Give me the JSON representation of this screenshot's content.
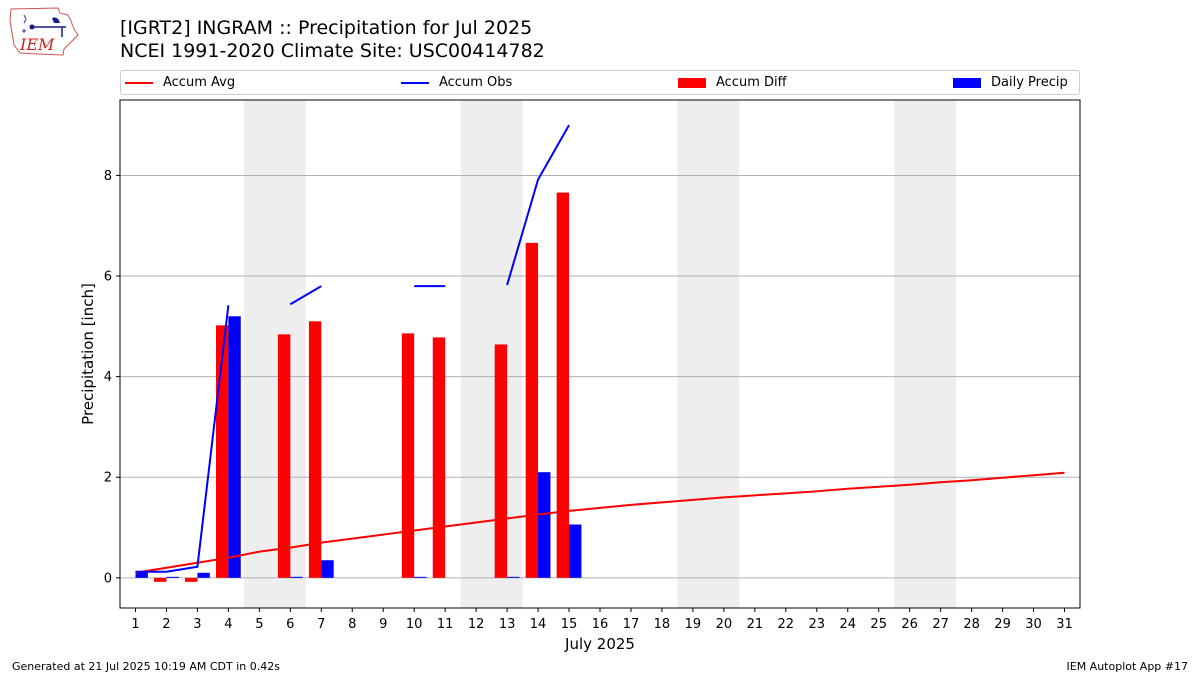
{
  "header": {
    "title_line1": "[IGRT2] INGRAM :: Precipitation for Jul 2025",
    "title_line2": "NCEI 1991-2020 Climate Site: USC00414782",
    "logo_text": "IEM"
  },
  "footer": {
    "generated": "Generated at 21 Jul 2025 10:19 AM CDT in 0.42s",
    "app": "IEM Autoplot App #17"
  },
  "colors": {
    "accum_avg": "#ff0000",
    "accum_obs": "#0000ff",
    "accum_diff": "#ff0000",
    "daily_precip": "#0000ff",
    "weekend_shade": "#eeeeee",
    "grid": "#b0b0b0"
  },
  "chart_data": {
    "type": "bar",
    "xlabel": "July 2025",
    "ylabel": "Precipitation [inch]",
    "xlim": [
      0.5,
      31.5
    ],
    "ylim": [
      -0.6,
      9.5
    ],
    "yticks": [
      0,
      2,
      4,
      6,
      8
    ],
    "grid": "horizontal",
    "legend_position": "top",
    "days": [
      1,
      2,
      3,
      4,
      5,
      6,
      7,
      8,
      9,
      10,
      11,
      12,
      13,
      14,
      15,
      16,
      17,
      18,
      19,
      20,
      21,
      22,
      23,
      24,
      25,
      26,
      27,
      28,
      29,
      30,
      31
    ],
    "weekend_days": [
      5,
      6,
      12,
      13,
      19,
      20,
      26,
      27
    ],
    "legend": [
      "Accum Avg",
      "Accum Obs",
      "Accum Diff",
      "Daily Precip"
    ],
    "series": [
      {
        "name": "Accum Avg",
        "kind": "line",
        "values": [
          0.1,
          0.2,
          0.3,
          0.4,
          0.52,
          0.6,
          0.7,
          0.78,
          0.86,
          0.94,
          1.02,
          1.1,
          1.18,
          1.26,
          1.33,
          1.39,
          1.45,
          1.5,
          1.55,
          1.6,
          1.64,
          1.68,
          1.72,
          1.77,
          1.81,
          1.85,
          1.9,
          1.94,
          1.99,
          2.04,
          2.09
        ]
      },
      {
        "name": "Accum Obs",
        "kind": "line",
        "values": [
          0.12,
          0.12,
          0.22,
          5.42,
          null,
          5.44,
          5.8,
          null,
          null,
          5.8,
          5.8,
          null,
          5.82,
          7.92,
          9.0,
          null,
          null,
          null,
          null,
          null,
          null,
          null,
          null,
          null,
          null,
          null,
          null,
          null,
          null,
          null,
          null
        ]
      },
      {
        "name": "Accum Diff",
        "kind": "bar",
        "values": [
          0.0,
          -0.08,
          -0.08,
          5.02,
          null,
          4.84,
          5.1,
          null,
          null,
          4.86,
          4.78,
          null,
          4.64,
          6.66,
          7.66,
          null,
          null,
          null,
          null,
          null,
          null,
          null,
          null,
          null,
          null,
          null,
          null,
          null,
          null,
          null,
          null
        ]
      },
      {
        "name": "Daily Precip",
        "kind": "bar",
        "values": [
          0.12,
          0.0,
          0.1,
          5.2,
          null,
          0.01,
          0.35,
          null,
          null,
          0.01,
          null,
          null,
          0.01,
          2.1,
          1.06,
          null,
          null,
          null,
          null,
          null,
          null,
          null,
          null,
          null,
          null,
          null,
          null,
          null,
          null,
          null,
          null
        ]
      }
    ]
  }
}
